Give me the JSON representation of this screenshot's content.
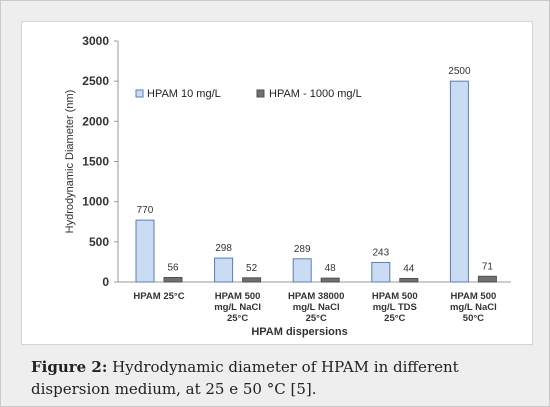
{
  "chart_data": {
    "type": "bar",
    "categories": [
      [
        "HPAM 25°C"
      ],
      [
        "HPAM 500",
        "mg/L  NaCl",
        "25°C"
      ],
      [
        "HPAM 38000",
        "mg/L  NaCl",
        "25°C"
      ],
      [
        "HPAM 500",
        "mg/L TDS",
        "25°C"
      ],
      [
        "HPAM 500",
        "mg/L  NaCl",
        "50°C"
      ]
    ],
    "series": [
      {
        "name": "HPAM 10 mg/L",
        "values": [
          770,
          298,
          289,
          243,
          2500
        ],
        "labels": [
          "770",
          "298",
          "289",
          "243",
          "2500"
        ],
        "color": "#c9dcf3",
        "stroke": "#5a7fb0"
      },
      {
        "name": "HPAM - 1000 mg/L",
        "values": [
          56,
          52,
          48,
          44,
          71
        ],
        "labels": [
          "56",
          "52",
          "48",
          "44",
          "71"
        ],
        "color": "#707070",
        "stroke": "#505050"
      }
    ],
    "xlabel": "HPAM dispersions",
    "ylabel": "Hydrodynamic Diameter (nm)",
    "ylim": [
      0,
      3000
    ],
    "yticks": [
      "0",
      "500",
      "1000",
      "1500",
      "2000",
      "2500",
      "3000"
    ],
    "legend_position": "top-left",
    "grid": false
  },
  "caption": {
    "label": "Figure 2:",
    "text": " Hydrodynamic diameter of HPAM in different dispersion medium, at 25 e 50 °C [5]."
  }
}
